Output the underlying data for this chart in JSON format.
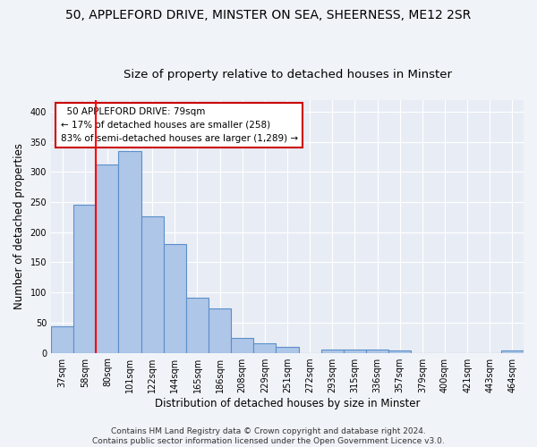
{
  "title": "50, APPLEFORD DRIVE, MINSTER ON SEA, SHEERNESS, ME12 2SR",
  "subtitle": "Size of property relative to detached houses in Minster",
  "xlabel": "Distribution of detached houses by size in Minster",
  "ylabel": "Number of detached properties",
  "categories": [
    "37sqm",
    "58sqm",
    "80sqm",
    "101sqm",
    "122sqm",
    "144sqm",
    "165sqm",
    "186sqm",
    "208sqm",
    "229sqm",
    "251sqm",
    "272sqm",
    "293sqm",
    "315sqm",
    "336sqm",
    "357sqm",
    "379sqm",
    "400sqm",
    "421sqm",
    "443sqm",
    "464sqm"
  ],
  "values": [
    44,
    246,
    312,
    335,
    227,
    180,
    91,
    74,
    25,
    15,
    10,
    0,
    5,
    5,
    5,
    4,
    0,
    0,
    0,
    0,
    4
  ],
  "bar_color": "#aec6e8",
  "bar_edge_color": "#5b8fc9",
  "bar_edge_width": 0.8,
  "red_line_x": 1.5,
  "annotation_text": "  50 APPLEFORD DRIVE: 79sqm\n← 17% of detached houses are smaller (258)\n83% of semi-detached houses are larger (1,289) →",
  "annotation_box_color": "#ffffff",
  "annotation_box_edge": "#cc0000",
  "ylim": [
    0,
    420
  ],
  "yticks": [
    0,
    50,
    100,
    150,
    200,
    250,
    300,
    350,
    400
  ],
  "bg_color": "#e8edf5",
  "fig_color": "#f0f3f8",
  "grid_color": "#ffffff",
  "footer": "Contains HM Land Registry data © Crown copyright and database right 2024.\nContains public sector information licensed under the Open Government Licence v3.0.",
  "title_fontsize": 10,
  "subtitle_fontsize": 9.5,
  "ylabel_fontsize": 8.5,
  "xlabel_fontsize": 8.5,
  "tick_fontsize": 7,
  "footer_fontsize": 6.5,
  "annotation_fontsize": 7.5
}
